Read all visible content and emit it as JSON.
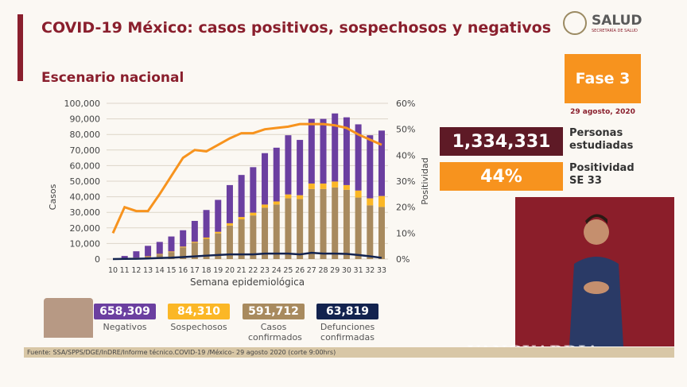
{
  "header": {
    "title": "COVID-19 México: casos positivos, sospechosos y negativos",
    "subtitle": "Escenario nacional",
    "logo_text": "SALUD",
    "logo_sub": "SECRETARÍA DE SALUD"
  },
  "panel": {
    "phase": "Fase 3",
    "date": "29 agosto, 2020",
    "studied_value": "1,334,331",
    "studied_label": [
      "Personas",
      "estudiadas"
    ],
    "positivity_value": "44%",
    "positivity_label": [
      "Positividad",
      "SE 33"
    ]
  },
  "stats": [
    {
      "value": "658,309",
      "label": "Negativos",
      "color": "#6b3fa0"
    },
    {
      "value": "84,310",
      "label": "Sospechosos",
      "color": "#fbb726"
    },
    {
      "value": "591,712",
      "label": "Casos confirmados",
      "color": "#a88a5e"
    },
    {
      "value": "63,819",
      "label": "Defunciones confirmadas",
      "color": "#13234f"
    }
  ],
  "footer": {
    "source": "Fuente: SSA/SPPS/DGE/InDRE/Informe técnico.COVID-19 /México- 29 agosto 2020 (corte 9:00hrs)"
  },
  "watermark": "VANGUARDIA",
  "chart_data": {
    "type": "bar",
    "stacked": true,
    "xlabel": "Semana epidemiológica",
    "ylabel": "Casos",
    "y2label": "Positividad",
    "ylim": [
      0,
      100000
    ],
    "y2lim": [
      0,
      60
    ],
    "grid": true,
    "yticks": [
      "0",
      "10,000",
      "20,000",
      "30,000",
      "40,000",
      "50,000",
      "60,000",
      "70,000",
      "80,000",
      "90,000",
      "100,000"
    ],
    "y2ticks": [
      "0%",
      "10%",
      "20%",
      "30%",
      "40%",
      "50%",
      "60%"
    ],
    "categories": [
      "10",
      "11",
      "12",
      "13",
      "14",
      "15",
      "16",
      "17",
      "18",
      "19",
      "20",
      "21",
      "22",
      "23",
      "24",
      "25",
      "26",
      "27",
      "28",
      "29",
      "30",
      "31",
      "32",
      "33"
    ],
    "series": [
      {
        "key": "confirmados",
        "color": "#a88a5e",
        "values": [
          0,
          300,
          700,
          1500,
          3000,
          4500,
          7500,
          10500,
          13000,
          16500,
          21500,
          25500,
          28000,
          33000,
          35000,
          39000,
          38500,
          45000,
          45000,
          46000,
          44500,
          39500,
          34500,
          33500
        ]
      },
      {
        "key": "sospechosos",
        "color": "#fbb726",
        "values": [
          0,
          100,
          200,
          300,
          300,
          400,
          500,
          600,
          800,
          1000,
          1500,
          1500,
          1800,
          2000,
          2000,
          2500,
          2500,
          3500,
          3500,
          3800,
          3000,
          4500,
          4500,
          7000
        ]
      },
      {
        "key": "negativos",
        "color": "#6b3fa0",
        "values": [
          0,
          1600,
          4100,
          6700,
          7700,
          9600,
          10500,
          13400,
          17700,
          20500,
          24500,
          27000,
          29200,
          33000,
          34500,
          38000,
          35500,
          41500,
          41500,
          43700,
          43500,
          42500,
          40500,
          42000
        ]
      }
    ],
    "lines": [
      {
        "key": "positividad",
        "axis": "right",
        "color": "#f7931e",
        "values": [
          10,
          20,
          18.5,
          18.5,
          25,
          32,
          39,
          42,
          41.5,
          44,
          46.5,
          48.5,
          48.5,
          50,
          50.5,
          51,
          52,
          52,
          52,
          51.5,
          50.5,
          48,
          46,
          44
        ]
      },
      {
        "key": "defunciones",
        "axis": "left",
        "color": "#13234f",
        "values": [
          0,
          100,
          200,
          400,
          700,
          900,
          1300,
          1700,
          2200,
          2600,
          3000,
          3000,
          3000,
          3500,
          3500,
          3500,
          3000,
          4000,
          3500,
          3500,
          3300,
          2600,
          1800,
          800
        ]
      }
    ]
  }
}
